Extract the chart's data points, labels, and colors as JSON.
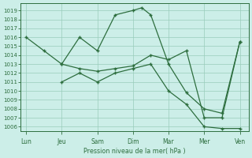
{
  "title": "Pression niveau de la mer( hPa )",
  "bg_color": "#cceee8",
  "grid_color": "#99ccbb",
  "line_color": "#2d6e3e",
  "ylim": [
    1005.5,
    1019.8
  ],
  "yticks": [
    1006,
    1007,
    1008,
    1009,
    1010,
    1011,
    1012,
    1013,
    1014,
    1015,
    1016,
    1017,
    1018,
    1019
  ],
  "x_labels": [
    "Lun",
    "Jeu",
    "Sam",
    "Dim",
    "Mar",
    "Mer",
    "Ven"
  ],
  "x_ticks": [
    0,
    2,
    4,
    6,
    8,
    10,
    12
  ],
  "xlim": [
    -0.3,
    12.5
  ],
  "line1_x": [
    0,
    1,
    2,
    3,
    4,
    5,
    6,
    6.5,
    7,
    8,
    9,
    10,
    11,
    12
  ],
  "line1_y": [
    1016.0,
    1014.5,
    1013.0,
    1016.0,
    1014.5,
    1018.5,
    1019.0,
    1019.3,
    1018.5,
    1013.0,
    1009.8,
    1008.0,
    1007.5,
    1015.5
  ],
  "line2_x": [
    2,
    3,
    4,
    5,
    6,
    7,
    8,
    9,
    10,
    11,
    12
  ],
  "line2_y": [
    1013.0,
    1012.5,
    1012.2,
    1012.5,
    1012.8,
    1014.0,
    1013.5,
    1014.5,
    1007.0,
    1007.0,
    1015.5
  ],
  "line3_x": [
    2,
    3,
    4,
    5,
    6,
    7,
    8,
    9,
    10,
    11,
    12
  ],
  "line3_y": [
    1011.0,
    1012.0,
    1011.0,
    1012.0,
    1012.5,
    1013.0,
    1010.0,
    1008.5,
    1006.0,
    1005.8,
    1005.8
  ]
}
